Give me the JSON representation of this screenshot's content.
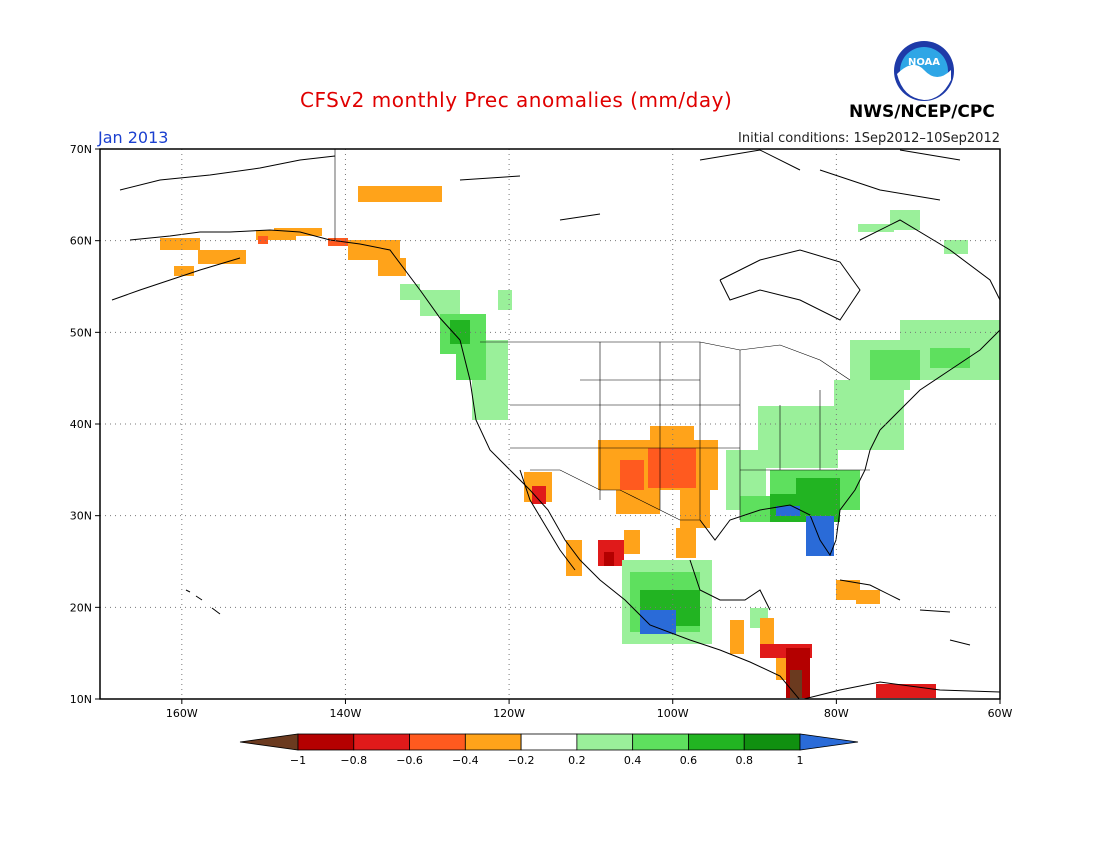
{
  "header": {
    "title": "CFSv2 monthly Prec anomalies (mm/day)",
    "agency": "NWS/NCEP/CPC",
    "logo_text": "NOAA",
    "valid_month": "Jan 2013",
    "initial_conditions": "Initial conditions: 1Sep2012–10Sep2012"
  },
  "map": {
    "lon_range": [
      -170,
      -60
    ],
    "lat_range": [
      10,
      70
    ],
    "lat_labels": [
      "70N",
      "60N",
      "50N",
      "40N",
      "30N",
      "20N",
      "10N"
    ],
    "lon_labels": [
      "160W",
      "140W",
      "120W",
      "100W",
      "80W",
      "60W"
    ]
  },
  "colorbar": {
    "tick_labels": [
      "−1",
      "−0.8",
      "−0.6",
      "−0.4",
      "−0.2",
      "0.2",
      "0.4",
      "0.6",
      "0.8",
      "1"
    ],
    "colors": [
      "#6b3a1f",
      "#b40000",
      "#e01a1a",
      "#ff5a1f",
      "#ffa31a",
      "#ffffff",
      "#9af09a",
      "#5ee05e",
      "#22b422",
      "#109010",
      "#2a6bd8"
    ]
  },
  "chart_data": {
    "type": "heatmap",
    "title": "CFSv2 monthly Prec anomalies (mm/day)",
    "variable": "Precipitation anomaly",
    "units": "mm/day",
    "valid": "Jan 2013",
    "init": "1Sep2012–10Sep2012",
    "extent": {
      "lon": [
        -170,
        -60
      ],
      "lat": [
        10,
        70
      ]
    },
    "levels": [
      -1,
      -0.8,
      -0.6,
      -0.4,
      -0.2,
      0.2,
      0.4,
      0.6,
      0.8,
      1
    ],
    "regions": [
      {
        "area": "Southern Alaska coast",
        "anomaly": -0.3
      },
      {
        "area": "Yukon / northern BC interior",
        "anomaly": -0.3
      },
      {
        "area": "Pacific Northwest coast",
        "anomaly": 0.6
      },
      {
        "area": "Texas / Oklahoma / New Mexico",
        "anomaly": -0.5
      },
      {
        "area": "Baja California",
        "anomaly": -0.4
      },
      {
        "area": "Southeast US / Florida",
        "anomaly": 0.8
      },
      {
        "area": "Ohio Valley / Northeast US",
        "anomaly": 0.3
      },
      {
        "area": "Southern Mexico",
        "anomaly": 0.6
      },
      {
        "area": "Central America",
        "anomaly": -0.8
      },
      {
        "area": "Caribbean / northern South America",
        "anomaly": -0.5
      }
    ]
  }
}
